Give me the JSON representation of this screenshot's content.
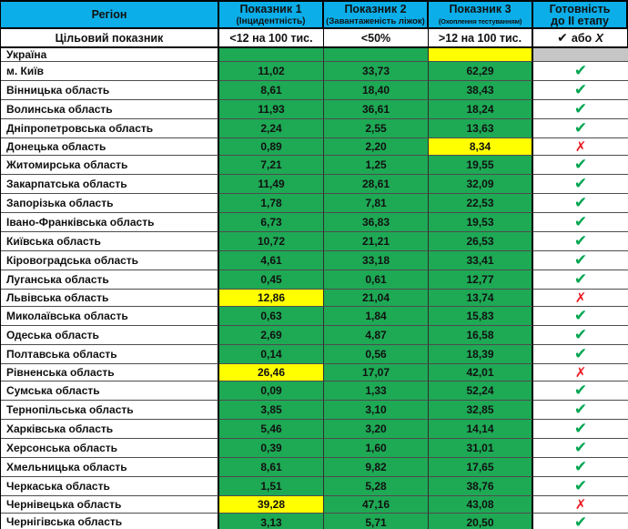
{
  "header": {
    "columns": [
      {
        "title": "Регіон",
        "subtitle": ""
      },
      {
        "title": "Показник 1",
        "subtitle": "(Інцидентність)"
      },
      {
        "title": "Показник 2",
        "subtitle": "(Завантаженість ліжок)"
      },
      {
        "title": "Показник 3",
        "subtitle": "(Охоплення тестуванням)"
      },
      {
        "title": "Готовність",
        "subtitle": "до ІІ етапу"
      }
    ]
  },
  "target_row": {
    "label": "Цільовий показник",
    "indicator1": "<12 на 100 тис.",
    "indicator2": "<50%",
    "indicator3": ">12 на 100 тис.",
    "readiness_check": "✔",
    "readiness_or": "або",
    "readiness_cross": "Х"
  },
  "icons": {
    "check": "✔",
    "cross": "✗"
  },
  "colors": {
    "header_bg": "#0baee8",
    "green": "#1ea955",
    "yellow": "#ffff00",
    "gray": "#c6c6c6",
    "check_green": "#00a650",
    "cross_red": "#ec1c24"
  },
  "rows": [
    {
      "region": "Україна",
      "values": [
        "",
        "",
        ""
      ],
      "highlight": [
        3
      ],
      "status": "none"
    },
    {
      "region": "м. Київ",
      "values": [
        "11,02",
        "33,73",
        "62,29"
      ],
      "highlight": [],
      "status": "check"
    },
    {
      "region": "Вінницька область",
      "values": [
        "8,61",
        "18,40",
        "38,43"
      ],
      "highlight": [],
      "status": "check"
    },
    {
      "region": "Волинська область",
      "values": [
        "11,93",
        "36,61",
        "18,24"
      ],
      "highlight": [],
      "status": "check"
    },
    {
      "region": "Дніпропетровська область",
      "values": [
        "2,24",
        "2,55",
        "13,63"
      ],
      "highlight": [],
      "status": "check"
    },
    {
      "region": "Донецька область",
      "values": [
        "0,89",
        "2,20",
        "8,34"
      ],
      "highlight": [
        3
      ],
      "status": "cross"
    },
    {
      "region": "Житомирська область",
      "values": [
        "7,21",
        "1,25",
        "19,55"
      ],
      "highlight": [],
      "status": "check"
    },
    {
      "region": "Закарпатська область",
      "values": [
        "11,49",
        "28,61",
        "32,09"
      ],
      "highlight": [],
      "status": "check"
    },
    {
      "region": "Запорізька область",
      "values": [
        "1,78",
        "7,81",
        "22,53"
      ],
      "highlight": [],
      "status": "check"
    },
    {
      "region": "Івано-Франківська область",
      "values": [
        "6,73",
        "36,83",
        "19,53"
      ],
      "highlight": [],
      "status": "check"
    },
    {
      "region": "Київська область",
      "values": [
        "10,72",
        "21,21",
        "26,53"
      ],
      "highlight": [],
      "status": "check"
    },
    {
      "region": "Кіровоградська область",
      "values": [
        "4,61",
        "33,18",
        "33,41"
      ],
      "highlight": [],
      "status": "check"
    },
    {
      "region": "Луганська область",
      "values": [
        "0,45",
        "0,61",
        "12,77"
      ],
      "highlight": [],
      "status": "check"
    },
    {
      "region": "Львівська область",
      "values": [
        "12,86",
        "21,04",
        "13,74"
      ],
      "highlight": [
        1
      ],
      "status": "cross"
    },
    {
      "region": "Миколаївська область",
      "values": [
        "0,63",
        "1,84",
        "15,83"
      ],
      "highlight": [],
      "status": "check"
    },
    {
      "region": "Одеська область",
      "values": [
        "2,69",
        "4,87",
        "16,58"
      ],
      "highlight": [],
      "status": "check"
    },
    {
      "region": "Полтавська область",
      "values": [
        "0,14",
        "0,56",
        "18,39"
      ],
      "highlight": [],
      "status": "check"
    },
    {
      "region": "Рівненська область",
      "values": [
        "26,46",
        "17,07",
        "42,01"
      ],
      "highlight": [
        1
      ],
      "status": "cross"
    },
    {
      "region": "Сумська область",
      "values": [
        "0,09",
        "1,33",
        "52,24"
      ],
      "highlight": [],
      "status": "check"
    },
    {
      "region": "Тернопільська область",
      "values": [
        "3,85",
        "3,10",
        "32,85"
      ],
      "highlight": [],
      "status": "check"
    },
    {
      "region": "Харківська область",
      "values": [
        "5,46",
        "3,20",
        "14,14"
      ],
      "highlight": [],
      "status": "check"
    },
    {
      "region": "Херсонська область",
      "values": [
        "0,39",
        "1,60",
        "31,01"
      ],
      "highlight": [],
      "status": "check"
    },
    {
      "region": "Хмельницька область",
      "values": [
        "8,61",
        "9,82",
        "17,65"
      ],
      "highlight": [],
      "status": "check"
    },
    {
      "region": "Черкаська область",
      "values": [
        "1,51",
        "5,28",
        "38,76"
      ],
      "highlight": [],
      "status": "check"
    },
    {
      "region": "Чернівецька область",
      "values": [
        "39,28",
        "47,16",
        "43,08"
      ],
      "highlight": [
        1
      ],
      "status": "cross"
    },
    {
      "region": "Чернігівська область",
      "values": [
        "3,13",
        "5,71",
        "20,50"
      ],
      "highlight": [],
      "status": "check"
    }
  ]
}
